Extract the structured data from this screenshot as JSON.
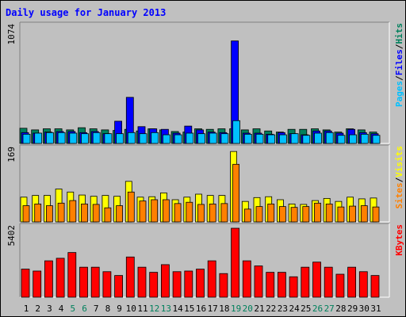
{
  "chart_data": {
    "type": "bar",
    "title": "Daily usage for January 2013",
    "days": [
      "1",
      "2",
      "3",
      "4",
      "5",
      "6",
      "7",
      "8",
      "9",
      "10",
      "11",
      "12",
      "13",
      "14",
      "15",
      "16",
      "17",
      "18",
      "19",
      "20",
      "21",
      "22",
      "23",
      "24",
      "25",
      "26",
      "27",
      "28",
      "29",
      "30",
      "31"
    ],
    "weekend_days": [
      "5",
      "6",
      "12",
      "13",
      "19",
      "20",
      "26",
      "27"
    ],
    "panels": [
      {
        "id": "hits_panel",
        "ymax_label": "1074",
        "ylim": [
          0,
          1074
        ],
        "legend": [
          {
            "text": "Pages",
            "color": "#00c0ff"
          },
          {
            "text": "/",
            "color": "#000000"
          },
          {
            "text": "Files",
            "color": "#0000ff"
          },
          {
            "text": "/",
            "color": "#000000"
          },
          {
            "text": "Hits",
            "color": "#00805c"
          }
        ],
        "series": [
          {
            "name": "Hits",
            "color": "#00805c",
            "values": [
              140,
              125,
              135,
              135,
              125,
              145,
              135,
              125,
              120,
              130,
              115,
              135,
              125,
              110,
              105,
              135,
              130,
              135,
              135,
              125,
              135,
              115,
              105,
              130,
              130,
              135,
              125,
              105,
              135,
              125,
              105
            ]
          },
          {
            "name": "Files",
            "color": "#0000ff",
            "values": [
              100,
              95,
              105,
              110,
              110,
              100,
              110,
              90,
              205,
              425,
              155,
              135,
              130,
              95,
              160,
              125,
              105,
              100,
              945,
              95,
              95,
              85,
              100,
              90,
              80,
              115,
              115,
              95,
              130,
              100,
              90
            ]
          },
          {
            "name": "Pages",
            "color": "#00c0ff",
            "values": [
              85,
              95,
              100,
              100,
              95,
              90,
              100,
              90,
              90,
              100,
              90,
              100,
              80,
              80,
              95,
              90,
              95,
              90,
              210,
              85,
              85,
              80,
              80,
              90,
              75,
              95,
              100,
              75,
              80,
              85,
              75
            ]
          }
        ]
      },
      {
        "id": "visits_panel",
        "ymax_label": "169",
        "ylim": [
          0,
          169
        ],
        "legend": [
          {
            "text": "Sites",
            "color": "#ff8000"
          },
          {
            "text": "/",
            "color": "#000000"
          },
          {
            "text": "Visits",
            "color": "#ffff00"
          }
        ],
        "series": [
          {
            "name": "Visits",
            "color": "#ffff00",
            "values": [
              58,
              62,
              62,
              77,
              70,
              63,
              60,
              62,
              60,
              95,
              58,
              59,
              68,
              52,
              58,
              65,
              62,
              62,
              165,
              48,
              57,
              59,
              52,
              42,
              41,
              50,
              55,
              48,
              58,
              54,
              56
            ]
          },
          {
            "name": "Sites",
            "color": "#ff8000",
            "values": [
              38,
              42,
              38,
              44,
              50,
              42,
              41,
              33,
              38,
              70,
              49,
              52,
              52,
              43,
              46,
              41,
              42,
              43,
              135,
              30,
              36,
              42,
              36,
              34,
              36,
              44,
              42,
              35,
              37,
              38,
              35
            ]
          }
        ]
      },
      {
        "id": "kbytes_panel",
        "ymax_label": "5402",
        "ylim": [
          0,
          5402
        ],
        "legend": [
          {
            "text": "KBytes",
            "color": "#ff0000"
          }
        ],
        "series": [
          {
            "name": "KBytes",
            "color": "#ff0000",
            "values": [
              2200,
              2050,
              2850,
              3050,
              3500,
              2350,
              2350,
              2000,
              1700,
              3150,
              2350,
              1950,
              2550,
              2000,
              2050,
              2200,
              2850,
              1850,
              5402,
              2850,
              2450,
              1950,
              1950,
              1600,
              2350,
              2750,
              2350,
              1800,
              2350,
              2000,
              1700
            ]
          }
        ]
      }
    ]
  }
}
